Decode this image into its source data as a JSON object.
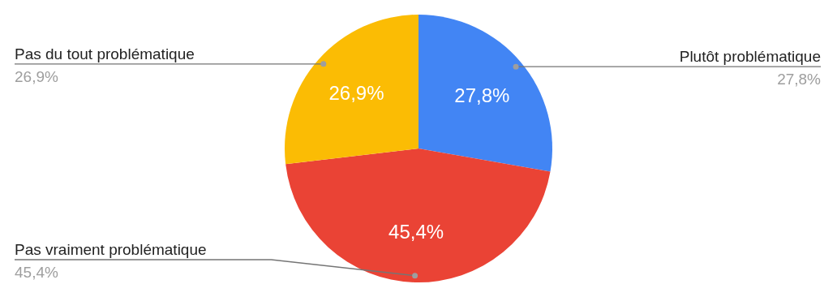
{
  "chart_data": {
    "type": "pie",
    "categories": [
      "Plutôt problématique",
      "Pas vraiment problématique",
      "Pas du tout problématique"
    ],
    "values": [
      27.8,
      45.4,
      26.9
    ],
    "colors": [
      "#4285f4",
      "#ea4335",
      "#fbbc04"
    ],
    "value_labels": [
      "27,8%",
      "45,4%",
      "26,9%"
    ]
  }
}
